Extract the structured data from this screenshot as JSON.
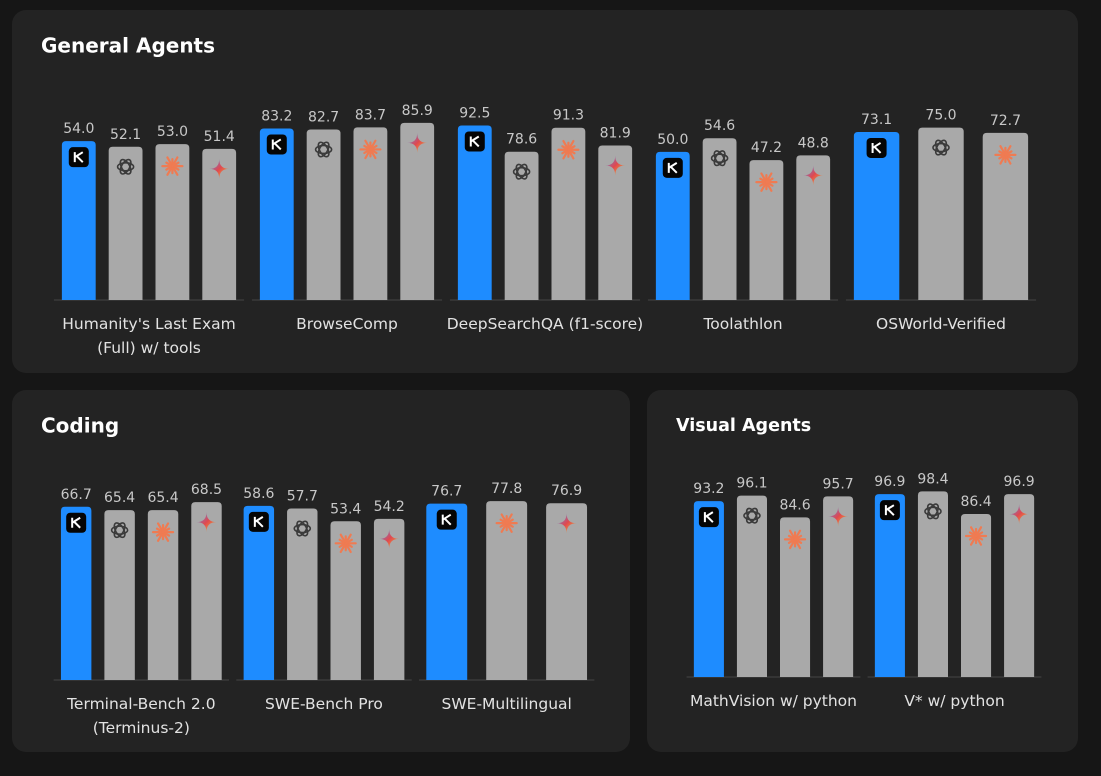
{
  "chart_data": [
    {
      "type": "bar",
      "title": "General Agents",
      "groups": [
        {
          "label": "Humanity's Last Exam (Full) w/ tools",
          "values": [
            54.0,
            52.1,
            53.0,
            51.4
          ],
          "value_labels": [
            "54.0",
            "52.1",
            "53.0",
            "51.4"
          ],
          "colors": [
            "#1e8cff",
            "#a9a9a9",
            "#a9a9a9",
            "#a9a9a9"
          ],
          "ylim": [
            0,
            68
          ]
        },
        {
          "label": "BrowseComp",
          "values": [
            83.2,
            82.7,
            83.7,
            85.9
          ],
          "value_labels": [
            "83.2",
            "82.7",
            "83.7",
            "85.9"
          ],
          "colors": [
            "#1e8cff",
            "#a9a9a9",
            "#a9a9a9",
            "#a9a9a9"
          ],
          "ylim": [
            0,
            97
          ]
        },
        {
          "label": "DeepSearchQA (f1-score)",
          "values": [
            92.5,
            78.6,
            91.3,
            81.9
          ],
          "value_labels": [
            "92.5",
            "78.6",
            "91.3",
            "81.9"
          ],
          "colors": [
            "#1e8cff",
            "#a9a9a9",
            "#a9a9a9",
            "#a9a9a9"
          ],
          "ylim": [
            0,
            106
          ]
        },
        {
          "label": "Toolathlon",
          "values": [
            50.0,
            54.6,
            47.2,
            48.8
          ],
          "value_labels": [
            "50.0",
            "54.6",
            "47.2",
            "48.8"
          ],
          "colors": [
            "#1e8cff",
            "#a9a9a9",
            "#a9a9a9",
            "#a9a9a9"
          ],
          "ylim": [
            0,
            67.5
          ]
        },
        {
          "label": "OSWorld-Verified",
          "values": [
            73.1,
            75.0,
            72.7
          ],
          "value_labels": [
            "73.1",
            "75.0",
            "72.7"
          ],
          "colors": [
            "#1e8cff",
            "#a9a9a9",
            "#a9a9a9"
          ],
          "ylim": [
            0,
            87
          ]
        }
      ]
    },
    {
      "type": "bar",
      "title": "Coding",
      "groups": [
        {
          "label": "Terminal-Bench 2.0 (Terminus-2)",
          "values": [
            66.7,
            65.4,
            65.4,
            68.5
          ],
          "value_labels": [
            "66.7",
            "65.4",
            "65.4",
            "68.5"
          ],
          "colors": [
            "#1e8cff",
            "#a9a9a9",
            "#a9a9a9",
            "#a9a9a9"
          ],
          "ylim": [
            0,
            77
          ]
        },
        {
          "label": "SWE-Bench Pro",
          "values": [
            58.6,
            57.7,
            53.4,
            54.2
          ],
          "value_labels": [
            "58.6",
            "57.7",
            "53.4",
            "54.2"
          ],
          "colors": [
            "#1e8cff",
            "#a9a9a9",
            "#a9a9a9",
            "#a9a9a9"
          ],
          "ylim": [
            0,
            67.3
          ]
        },
        {
          "label": "SWE-Multilingual",
          "values": [
            76.7,
            77.8,
            76.9
          ],
          "value_labels": [
            "76.7",
            "77.8",
            "76.9"
          ],
          "colors": [
            "#1e8cff",
            "#a9a9a9",
            "#a9a9a9"
          ],
          "ylim": [
            0,
            87
          ]
        }
      ]
    },
    {
      "type": "bar",
      "title": "Visual Agents",
      "groups": [
        {
          "label": "MathVision w/ python",
          "values": [
            93.2,
            96.1,
            84.6,
            95.7
          ],
          "value_labels": [
            "93.2",
            "96.1",
            "84.6",
            "95.7"
          ],
          "colors": [
            "#1e8cff",
            "#a9a9a9",
            "#a9a9a9",
            "#a9a9a9"
          ],
          "ylim": [
            0,
            106
          ]
        },
        {
          "label": "V* w/ python",
          "values": [
            96.9,
            98.4,
            86.4,
            96.9
          ],
          "value_labels": [
            "96.9",
            "98.4",
            "86.4",
            "96.9"
          ],
          "colors": [
            "#1e8cff",
            "#a9a9a9",
            "#a9a9a9",
            "#a9a9a9"
          ],
          "ylim": [
            0,
            106
          ]
        }
      ]
    }
  ]
}
